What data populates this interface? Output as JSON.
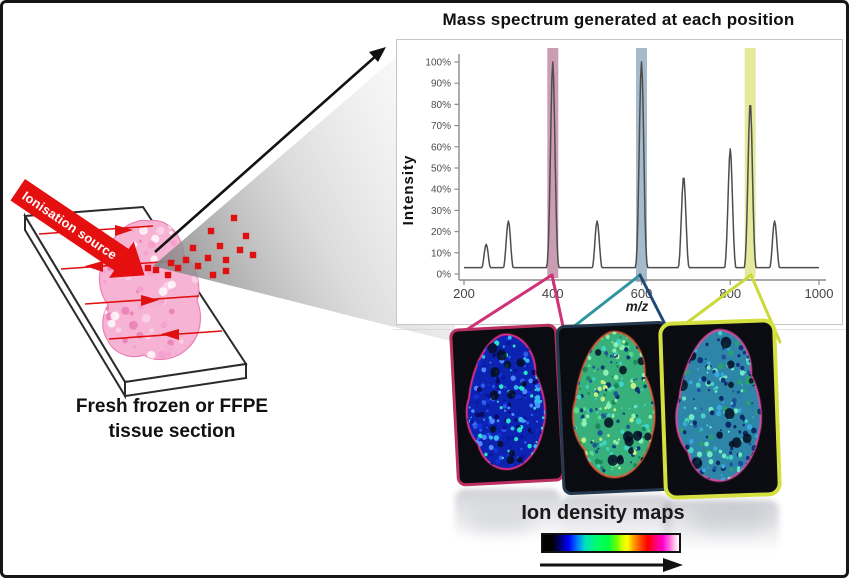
{
  "figure": {
    "spectrum": {
      "title": "Mass spectrum generated at each position",
      "ylabel": "Intensity",
      "xlabel": "m/z"
    },
    "ionisation_label": "Ionisation source",
    "slide_caption_line1": "Fresh frozen or FFPE",
    "slide_caption_line2": "tissue section",
    "density_maps_label": "Ion density maps"
  },
  "chart_data": {
    "type": "line",
    "title": "Mass spectrum generated at each position",
    "xlabel": "m/z",
    "ylabel": "Intensity (%)",
    "xlim": [
      200,
      1000
    ],
    "ylim": [
      0,
      100
    ],
    "grid": false,
    "legend": null,
    "baseline_pct": 3,
    "peak_sigma_mz": 5,
    "x_ticks": [
      200,
      400,
      600,
      800,
      1000
    ],
    "x_tick_labels": [
      "200",
      "400",
      "600",
      "800",
      "1000"
    ],
    "y_ticks_pct": [
      0,
      10,
      20,
      30,
      40,
      50,
      60,
      70,
      80,
      90,
      100
    ],
    "y_tick_labels": [
      "0%",
      "10%",
      "20%",
      "30%",
      "40%",
      "50%",
      "60%",
      "70%",
      "80%",
      "90%",
      "100%"
    ],
    "peaks": [
      {
        "mz": 250,
        "intensity_pct": 14
      },
      {
        "mz": 300,
        "intensity_pct": 25
      },
      {
        "mz": 400,
        "intensity_pct": 100,
        "highlight": "pink"
      },
      {
        "mz": 500,
        "intensity_pct": 25
      },
      {
        "mz": 600,
        "intensity_pct": 100,
        "highlight": "blue"
      },
      {
        "mz": 695,
        "intensity_pct": 46
      },
      {
        "mz": 800,
        "intensity_pct": 59
      },
      {
        "mz": 845,
        "intensity_pct": 81,
        "highlight": "yellow"
      },
      {
        "mz": 900,
        "intensity_pct": 25
      }
    ],
    "highlight_bands": [
      {
        "mz": 400,
        "color": "#c795ab",
        "maps_to": "ion density map 1"
      },
      {
        "mz": 600,
        "color": "#9db4c6",
        "maps_to": "ion density map 2"
      },
      {
        "mz": 845,
        "color": "#e2e794",
        "maps_to": "ion density map 3"
      }
    ]
  },
  "density_maps": {
    "cards": [
      {
        "border_color": "#b93061",
        "base_color": "#0c22b0",
        "rim_color": "#f0308a",
        "speckle_colors": [
          "#0718a0",
          "#1030d8",
          "#2b59f0",
          "#35b9ee",
          "#27e3c9",
          "#4f8bff",
          "#0a0a60"
        ]
      },
      {
        "border_color": "#24384e",
        "base_color": "#37b07c",
        "rim_color": "#e05c35",
        "speckle_colors": [
          "#1a8a5c",
          "#58dc8c",
          "#3fd4c4",
          "#c2ef86",
          "#1c5a96",
          "#0c3a70",
          "#8cf0b0"
        ]
      },
      {
        "border_color": "#d4e040",
        "base_color": "#2d86a8",
        "rim_color": "#e04a9c",
        "speckle_colors": [
          "#1c4f9c",
          "#43d3c3",
          "#2aa06e",
          "#70e8c0",
          "#14327e",
          "#3aa8e0",
          "#0c2a66"
        ]
      }
    ]
  },
  "colors": {
    "accent_red": "#e01010",
    "funnel_pink": "#cf3277",
    "funnel_teal": "#2e95a3",
    "funnel_navy": "#1e4a74",
    "funnel_yellow": "#ccd93a",
    "tissue_pink": "#f7b3d4",
    "tissue_rim": "#ec7fb4",
    "cone_dark": "#828282",
    "cone_light": "#ebebeb"
  }
}
